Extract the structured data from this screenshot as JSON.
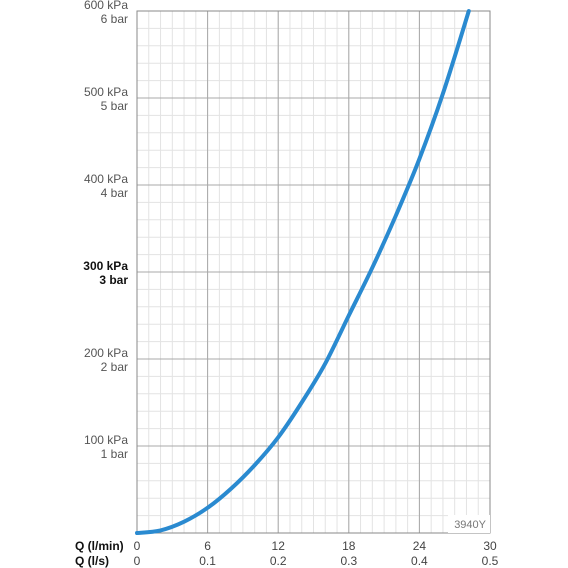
{
  "chart_data": {
    "type": "line",
    "x_unit_primary": "Q (l/min)",
    "x_unit_secondary": "Q (l/s)",
    "xlim": [
      0,
      30
    ],
    "ylim": [
      0,
      600
    ],
    "x_ticks_primary": [
      "0",
      "6",
      "12",
      "18",
      "24",
      "30"
    ],
    "x_ticks_secondary": [
      "0",
      "0.1",
      "0.2",
      "0.3",
      "0.4",
      "0.5"
    ],
    "y_ticks": [
      {
        "value": 600,
        "kpa": "600 kPa",
        "bar": "6 bar",
        "emphasis": false
      },
      {
        "value": 500,
        "kpa": "500 kPa",
        "bar": "5 bar",
        "emphasis": false
      },
      {
        "value": 400,
        "kpa": "400 kPa",
        "bar": "4 bar",
        "emphasis": false
      },
      {
        "value": 300,
        "kpa": "300 kPa",
        "bar": "3 bar",
        "emphasis": true
      },
      {
        "value": 200,
        "kpa": "200 kPa",
        "bar": "2 bar",
        "emphasis": false
      },
      {
        "value": 100,
        "kpa": "100 kPa",
        "bar": "1 bar",
        "emphasis": false
      }
    ],
    "grid": true,
    "model_code": "3940Y",
    "series": [
      {
        "color": "#2a8ad0",
        "x": [
          0,
          2,
          4,
          6,
          8,
          10,
          12,
          14,
          16,
          18,
          20,
          22,
          24,
          26,
          28.2
        ],
        "y": [
          0,
          3,
          13,
          29,
          51,
          78,
          110,
          150,
          195,
          250,
          305,
          365,
          430,
          505,
          600
        ]
      }
    ]
  }
}
